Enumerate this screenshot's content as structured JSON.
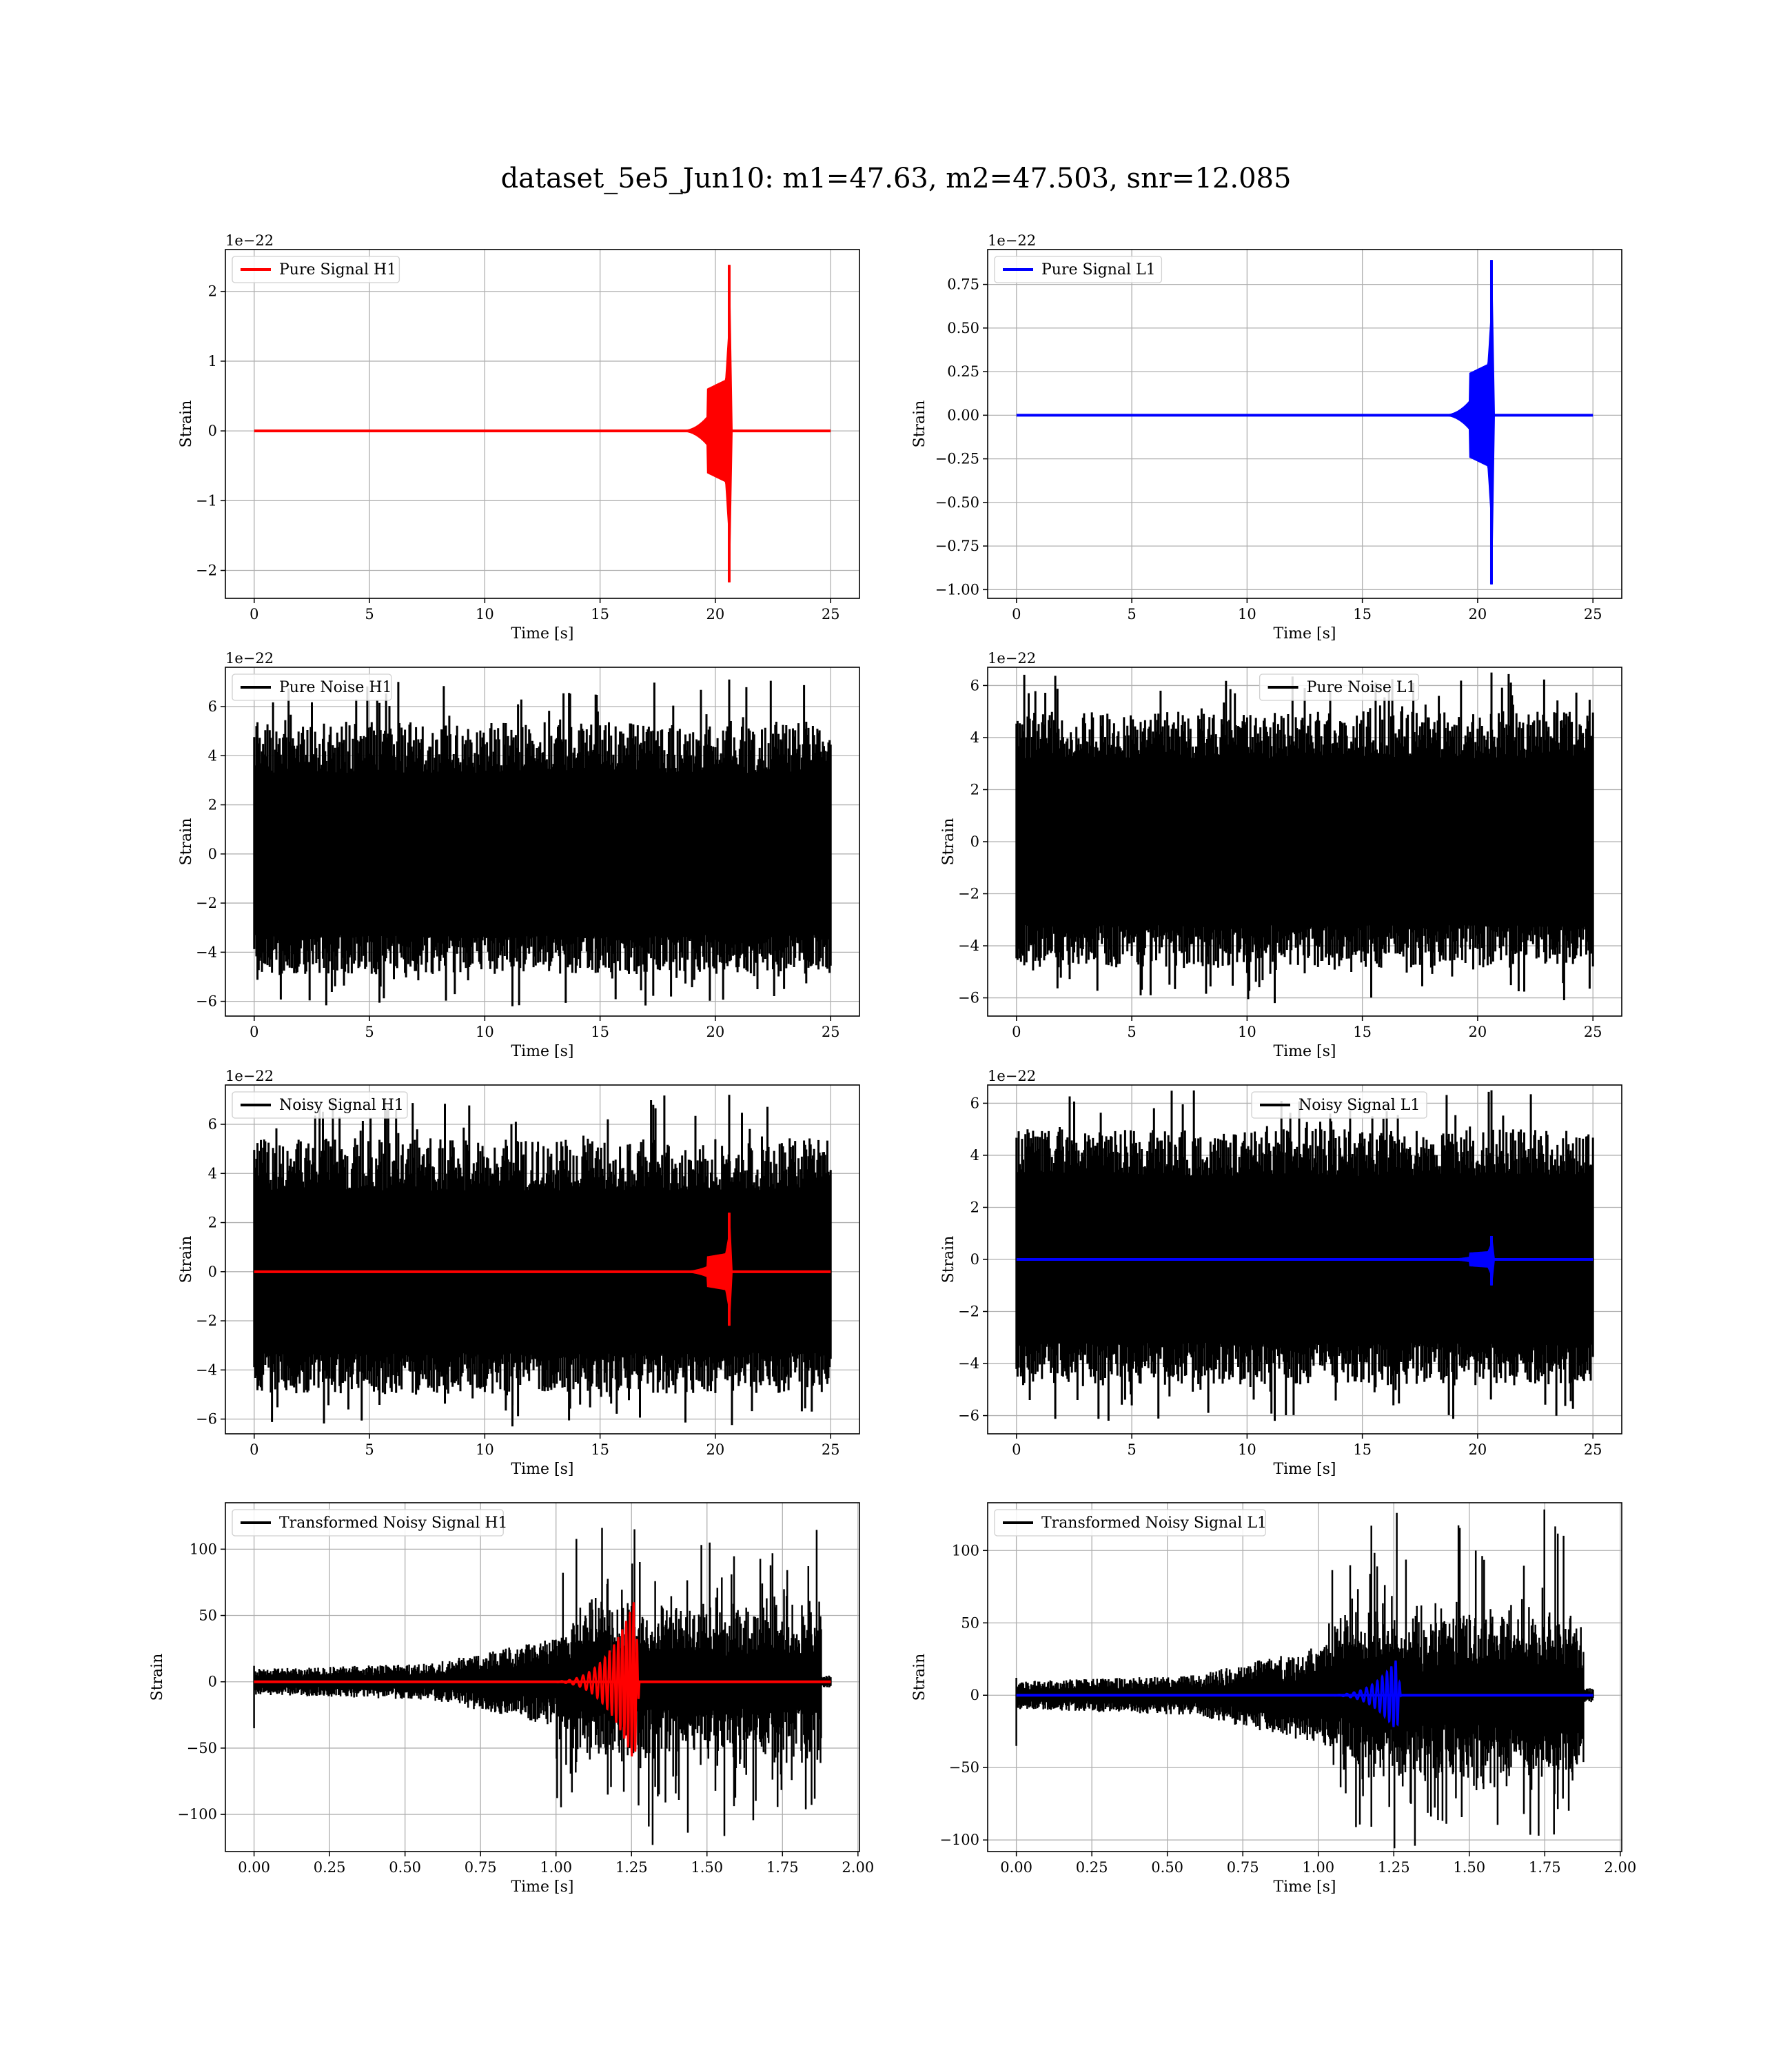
{
  "figure": {
    "title": "dataset_5e5_Jun10: m1=47.63, m2=47.503, snr=12.085",
    "colors": {
      "h1": "#ff0000",
      "l1": "#0000ff",
      "noise": "#000000",
      "grid": "#b0b0b0"
    }
  },
  "chart_data": [
    {
      "id": "pure-signal-h1",
      "type": "line",
      "xlabel": "Time [s]",
      "ylabel": "Strain",
      "offset_text": "1e−22",
      "xlim": [
        -1.25,
        26.25
      ],
      "ylim": [
        -2.4,
        2.6
      ],
      "xticks": [
        0,
        5,
        10,
        15,
        20,
        25
      ],
      "xtick_labels": [
        "0",
        "5",
        "10",
        "15",
        "20",
        "25"
      ],
      "yticks": [
        -2,
        -1,
        0,
        1,
        2
      ],
      "ytick_labels": [
        "−2",
        "−1",
        "0",
        "1",
        "2"
      ],
      "legend_loc": "upper left",
      "series": [
        {
          "name": "Pure Signal H1",
          "color": "#ff0000",
          "kind": "chirp",
          "x_start": 0,
          "x_end": 25,
          "onset": 18.5,
          "merger": 20.6,
          "peak_pos": 2.38,
          "peak_neg": -2.17,
          "pre_merger_amp": 0.75
        }
      ]
    },
    {
      "id": "pure-signal-l1",
      "type": "line",
      "xlabel": "Time [s]",
      "ylabel": "Strain",
      "offset_text": "1e−22",
      "xlim": [
        -1.25,
        26.25
      ],
      "ylim": [
        -1.05,
        0.95
      ],
      "xticks": [
        0,
        5,
        10,
        15,
        20,
        25
      ],
      "xtick_labels": [
        "0",
        "5",
        "10",
        "15",
        "20",
        "25"
      ],
      "yticks": [
        -1.0,
        -0.75,
        -0.5,
        -0.25,
        0.0,
        0.25,
        0.5,
        0.75
      ],
      "ytick_labels": [
        "−1.00",
        "−0.75",
        "−0.50",
        "−0.25",
        "0.00",
        "0.25",
        "0.50",
        "0.75"
      ],
      "legend_loc": "upper left",
      "series": [
        {
          "name": "Pure Signal L1",
          "color": "#0000ff",
          "kind": "chirp",
          "x_start": 0,
          "x_end": 25,
          "onset": 18.5,
          "merger": 20.6,
          "peak_pos": 0.89,
          "peak_neg": -0.97,
          "pre_merger_amp": 0.3
        }
      ]
    },
    {
      "id": "pure-noise-h1",
      "type": "line",
      "xlabel": "Time [s]",
      "ylabel": "Strain",
      "offset_text": "1e−22",
      "xlim": [
        -1.25,
        26.25
      ],
      "ylim": [
        -6.6,
        7.6
      ],
      "xticks": [
        0,
        5,
        10,
        15,
        20,
        25
      ],
      "xtick_labels": [
        "0",
        "5",
        "10",
        "15",
        "20",
        "25"
      ],
      "yticks": [
        -6,
        -4,
        -2,
        0,
        2,
        4,
        6
      ],
      "ytick_labels": [
        "−6",
        "−4",
        "−2",
        "0",
        "2",
        "4",
        "6"
      ],
      "legend_loc": "upper left",
      "series": [
        {
          "name": "Pure Noise H1",
          "color": "#000000",
          "kind": "noise",
          "x_start": 0,
          "x_end": 25,
          "band": 3.3,
          "spike_max": 7.1,
          "spike_min": -6.2
        }
      ]
    },
    {
      "id": "pure-noise-l1",
      "type": "line",
      "xlabel": "Time [s]",
      "ylabel": "Strain",
      "offset_text": "1e−22",
      "xlim": [
        -1.25,
        26.25
      ],
      "ylim": [
        -6.7,
        6.7
      ],
      "xticks": [
        0,
        5,
        10,
        15,
        20,
        25
      ],
      "xtick_labels": [
        "0",
        "5",
        "10",
        "15",
        "20",
        "25"
      ],
      "yticks": [
        -6,
        -4,
        -2,
        0,
        2,
        4,
        6
      ],
      "ytick_labels": [
        "−6",
        "−4",
        "−2",
        "0",
        "2",
        "4",
        "6"
      ],
      "legend_loc": "upper center",
      "series": [
        {
          "name": "Pure Noise L1",
          "color": "#000000",
          "kind": "noise",
          "x_start": 0,
          "x_end": 25,
          "band": 3.2,
          "spike_max": 6.5,
          "spike_min": -6.2
        }
      ]
    },
    {
      "id": "noisy-signal-h1",
      "type": "line",
      "xlabel": "Time [s]",
      "ylabel": "Strain",
      "offset_text": "1e−22",
      "xlim": [
        -1.25,
        26.25
      ],
      "ylim": [
        -6.6,
        7.6
      ],
      "xticks": [
        0,
        5,
        10,
        15,
        20,
        25
      ],
      "xtick_labels": [
        "0",
        "5",
        "10",
        "15",
        "20",
        "25"
      ],
      "yticks": [
        -6,
        -4,
        -2,
        0,
        2,
        4,
        6
      ],
      "ytick_labels": [
        "−6",
        "−4",
        "−2",
        "0",
        "2",
        "4",
        "6"
      ],
      "legend_loc": "upper left",
      "series": [
        {
          "name": "Noisy Signal H1",
          "color": "#000000",
          "kind": "noise",
          "x_start": 0,
          "x_end": 25,
          "band": 3.3,
          "spike_max": 7.2,
          "spike_min": -6.3
        },
        {
          "color": "#ff0000",
          "kind": "chirp",
          "x_start": 0,
          "x_end": 25,
          "onset": 18.5,
          "merger": 20.6,
          "peak_pos": 2.4,
          "peak_neg": -2.2,
          "pre_merger_amp": 0.75
        }
      ]
    },
    {
      "id": "noisy-signal-l1",
      "type": "line",
      "xlabel": "Time [s]",
      "ylabel": "Strain",
      "offset_text": "1e−22",
      "xlim": [
        -1.25,
        26.25
      ],
      "ylim": [
        -6.7,
        6.7
      ],
      "xticks": [
        0,
        5,
        10,
        15,
        20,
        25
      ],
      "xtick_labels": [
        "0",
        "5",
        "10",
        "15",
        "20",
        "25"
      ],
      "yticks": [
        -6,
        -4,
        -2,
        0,
        2,
        4,
        6
      ],
      "ytick_labels": [
        "−6",
        "−4",
        "−2",
        "0",
        "2",
        "4",
        "6"
      ],
      "legend_loc": "upper center",
      "series": [
        {
          "name": "Noisy Signal L1",
          "color": "#000000",
          "kind": "noise",
          "x_start": 0,
          "x_end": 25,
          "band": 3.2,
          "spike_max": 6.5,
          "spike_min": -6.2
        },
        {
          "color": "#0000ff",
          "kind": "chirp",
          "x_start": 0,
          "x_end": 25,
          "onset": 18.5,
          "merger": 20.6,
          "peak_pos": 0.9,
          "peak_neg": -1.0,
          "pre_merger_amp": 0.3
        }
      ]
    },
    {
      "id": "transformed-noisy-signal-h1",
      "type": "line",
      "xlabel": "Time [s]",
      "ylabel": "Strain",
      "offset_text": "",
      "xlim": [
        -0.095,
        2.005
      ],
      "ylim": [
        -128,
        135
      ],
      "xticks": [
        0.0,
        0.25,
        0.5,
        0.75,
        1.0,
        1.25,
        1.5,
        1.75,
        2.0
      ],
      "xtick_labels": [
        "0.00",
        "0.25",
        "0.50",
        "0.75",
        "1.00",
        "1.25",
        "1.50",
        "1.75",
        "2.00"
      ],
      "yticks": [
        -100,
        -50,
        0,
        50,
        100
      ],
      "ytick_labels": [
        "−100",
        "−50",
        "0",
        "50",
        "100"
      ],
      "legend_loc": "upper left",
      "series": [
        {
          "name": "Transformed Noisy Signal H1",
          "color": "#000000",
          "kind": "whitened",
          "x_start": 0,
          "x_end": 1.91,
          "spike_max": 115,
          "spike_min": -123
        },
        {
          "color": "#ff0000",
          "kind": "osc_chirp",
          "x_start": 0,
          "x_end": 1.91,
          "onset": 0.95,
          "merger": 1.26,
          "peak_pos": 62,
          "peak_neg": -58
        }
      ]
    },
    {
      "id": "transformed-noisy-signal-l1",
      "type": "line",
      "xlabel": "Time [s]",
      "ylabel": "Strain",
      "offset_text": "",
      "xlim": [
        -0.095,
        2.005
      ],
      "ylim": [
        -108,
        133
      ],
      "xticks": [
        0.0,
        0.25,
        0.5,
        0.75,
        1.0,
        1.25,
        1.5,
        1.75,
        2.0
      ],
      "xtick_labels": [
        "0.00",
        "0.25",
        "0.50",
        "0.75",
        "1.00",
        "1.25",
        "1.50",
        "1.75",
        "2.00"
      ],
      "yticks": [
        -100,
        -50,
        0,
        50,
        100
      ],
      "ytick_labels": [
        "−100",
        "−50",
        "0",
        "50",
        "100"
      ],
      "legend_loc": "upper left",
      "series": [
        {
          "name": "Transformed Noisy Signal L1",
          "color": "#000000",
          "kind": "whitened",
          "x_start": 0,
          "x_end": 1.91,
          "spike_max": 126,
          "spike_min": -104
        },
        {
          "color": "#0000ff",
          "kind": "osc_chirp",
          "x_start": 0,
          "x_end": 1.91,
          "onset": 1.0,
          "merger": 1.26,
          "peak_pos": 25,
          "peak_neg": -25
        }
      ]
    }
  ]
}
